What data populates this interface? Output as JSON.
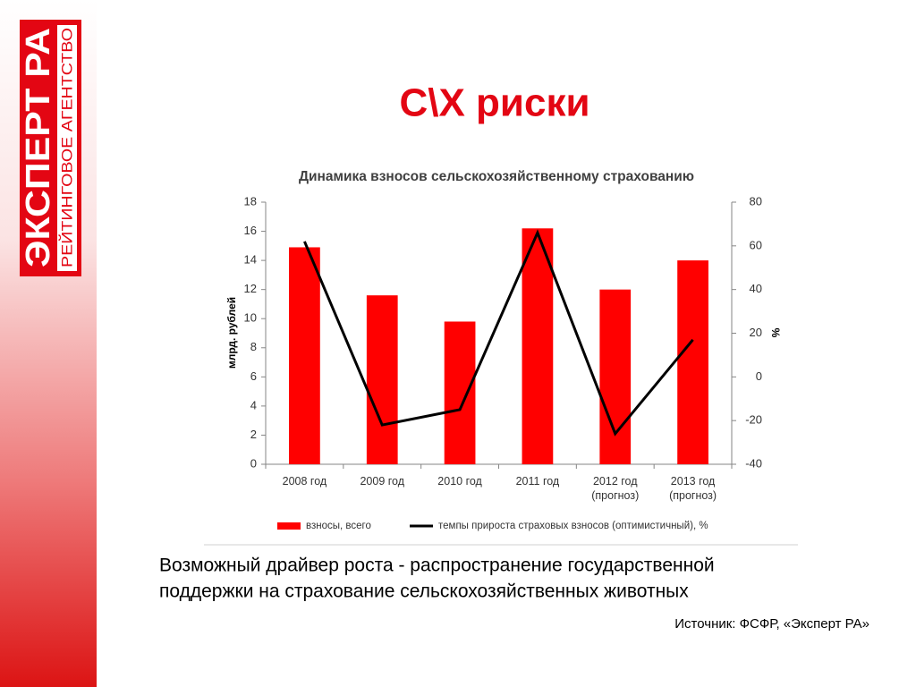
{
  "slide": {
    "title": "С\\Х риски",
    "logo_main": "ЭКСПЕРТ РА",
    "logo_sub": "РЕЙТИНГОВОЕ АГЕНТСТВО",
    "body_lines": [
      "Возможный драйвер роста - распространение государственной",
      "поддержки на страхование сельскохозяйственных животных"
    ],
    "source": "Источник: ФСФР,  «Эксперт РА»"
  },
  "chart_data": {
    "type": "bar",
    "title": "Динамика взносов сельскохозяйственному страхованию",
    "categories": [
      "2008 год",
      "2009 год",
      "2010 год",
      "2011 год",
      "2012 год (прогноз)",
      "2013 год (прогноз)"
    ],
    "series": [
      {
        "name": "взносы, всего",
        "color": "#ff0000",
        "type": "bar",
        "values": [
          14.9,
          11.6,
          9.8,
          16.2,
          12.0,
          14.0
        ]
      },
      {
        "name": "темпы прироста страховых взносов (оптимистичный), %",
        "color": "#000000",
        "type": "line",
        "axis": "y2",
        "values": [
          62,
          -22,
          -15,
          66,
          -26,
          17
        ]
      }
    ],
    "y_label": "млрд. рублей",
    "y2_label": "%",
    "ylim": [
      0,
      18
    ],
    "yticks": [
      0,
      2,
      4,
      6,
      8,
      10,
      12,
      14,
      16,
      18
    ],
    "y2lim": [
      -40,
      80
    ],
    "y2ticks": [
      -40,
      -20,
      0,
      20,
      40,
      60,
      80
    ],
    "grid": false,
    "legend": "bottom"
  }
}
